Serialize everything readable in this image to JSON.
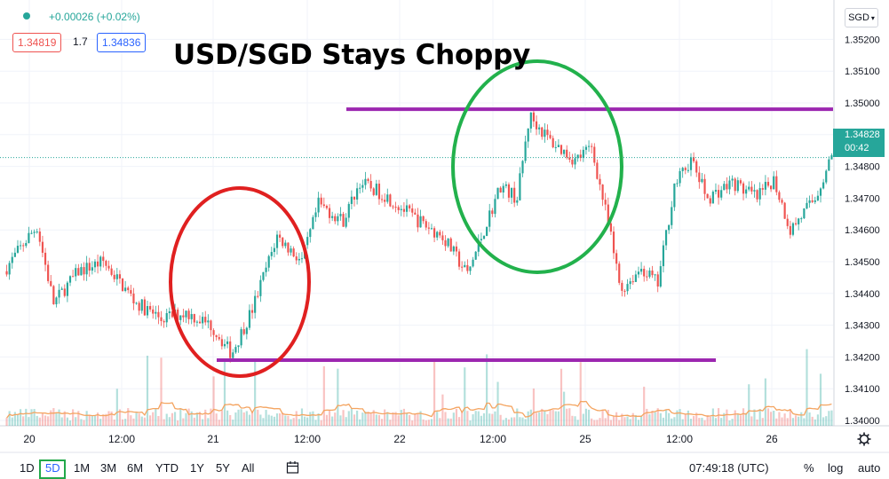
{
  "header": {
    "change": "+0.00026 (+0.02%)",
    "bid": "1.34819",
    "spread": "1.7",
    "ask": "1.34836",
    "currency": "SGD"
  },
  "annotation_title": "USD/SGD Stays Choppy",
  "last_price": {
    "value": "1.34828",
    "countdown": "00:42"
  },
  "bottom_bar": {
    "ranges": [
      "1D",
      "5D",
      "1M",
      "3M",
      "6M",
      "YTD",
      "1Y",
      "5Y",
      "All"
    ],
    "selected_range": "5D",
    "time": "07:49:18 (UTC)",
    "percent": "%",
    "log": "log",
    "auto": "auto"
  },
  "colors": {
    "up": "#26a69a",
    "down": "#ef5350",
    "purple": "#9c27b0",
    "red_circle": "#e02020",
    "green_circle": "#22b14c",
    "volume_ma": "#f4a460"
  },
  "chart_data": {
    "type": "candlestick",
    "symbol": "USD/SGD",
    "y_ticks": [
      1.34,
      1.341,
      1.342,
      1.343,
      1.344,
      1.345,
      1.346,
      1.347,
      1.348,
      1.349,
      1.35,
      1.351,
      1.352
    ],
    "ylim": [
      1.3398,
      1.3528
    ],
    "x_labels": [
      "20",
      "12:00",
      "21",
      "12:00",
      "22",
      "12:00",
      "25",
      "12:00",
      "26"
    ],
    "price_path": [
      [
        0,
        1.3447
      ],
      [
        0.03,
        1.3458
      ],
      [
        0.04,
        1.3461
      ],
      [
        0.06,
        1.3437
      ],
      [
        0.09,
        1.3447
      ],
      [
        0.12,
        1.345
      ],
      [
        0.16,
        1.3437
      ],
      [
        0.19,
        1.3432
      ],
      [
        0.22,
        1.3434
      ],
      [
        0.25,
        1.343
      ],
      [
        0.275,
        1.3421
      ],
      [
        0.3,
        1.3435
      ],
      [
        0.33,
        1.3458
      ],
      [
        0.36,
        1.345
      ],
      [
        0.38,
        1.3468
      ],
      [
        0.41,
        1.3463
      ],
      [
        0.43,
        1.3475
      ],
      [
        0.46,
        1.3471
      ],
      [
        0.5,
        1.3463
      ],
      [
        0.53,
        1.3458
      ],
      [
        0.56,
        1.3446
      ],
      [
        0.58,
        1.346
      ],
      [
        0.6,
        1.3474
      ],
      [
        0.62,
        1.347
      ],
      [
        0.635,
        1.3496
      ],
      [
        0.66,
        1.3488
      ],
      [
        0.69,
        1.3482
      ],
      [
        0.71,
        1.3486
      ],
      [
        0.73,
        1.3462
      ],
      [
        0.745,
        1.3441
      ],
      [
        0.77,
        1.3448
      ],
      [
        0.79,
        1.3443
      ],
      [
        0.81,
        1.3474
      ],
      [
        0.83,
        1.3482
      ],
      [
        0.85,
        1.347
      ],
      [
        0.88,
        1.3475
      ],
      [
        0.91,
        1.347
      ],
      [
        0.93,
        1.3476
      ],
      [
        0.95,
        1.346
      ],
      [
        0.98,
        1.347
      ],
      [
        1.0,
        1.3483
      ]
    ],
    "support_line": 1.3419,
    "resistance_line": 1.3498,
    "last_price": 1.34828
  }
}
